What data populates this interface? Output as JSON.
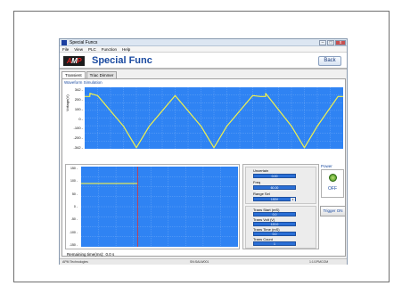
{
  "window": {
    "title": "Special Funcs"
  },
  "menu": [
    "File",
    "View",
    "PLC",
    "Function",
    "Help"
  ],
  "header": {
    "logo_prefix": "A",
    "logo_suffix": "P",
    "page_title": "Special Func",
    "back_label": "Back"
  },
  "tabs": [
    {
      "label": "Transient",
      "active": true
    },
    {
      "label": "Triac Dimmer",
      "active": false
    }
  ],
  "waveform": {
    "section_label": "Waveform Simulation",
    "y_label": "Voltage(V)",
    "y_ticks": [
      "342",
      "200",
      "100",
      "0",
      "-100",
      "-200",
      "-342"
    ],
    "colors": {
      "background": "#2f83f3",
      "trace": "#f2f24a",
      "grid": "#7fb4f7"
    }
  },
  "chart_data": {
    "type": "line",
    "xlabel": "",
    "ylabel": "Voltage(V)",
    "ylim": [
      -342,
      342
    ],
    "series": [
      {
        "values": [
          [
            0,
            240
          ],
          [
            0.2,
            240
          ],
          [
            0.2,
            275
          ],
          [
            0.5,
            250
          ],
          [
            1.5,
            -90
          ],
          [
            2.0,
            -330
          ],
          [
            2.5,
            -90
          ],
          [
            3.5,
            250
          ],
          [
            4.5,
            -90
          ],
          [
            5.0,
            -330
          ],
          [
            5.5,
            -90
          ],
          [
            6.5,
            250
          ],
          [
            6.8,
            240
          ],
          [
            7.0,
            240
          ],
          [
            7.0,
            275
          ],
          [
            8.0,
            -90
          ],
          [
            8.5,
            -330
          ],
          [
            9.0,
            -90
          ],
          [
            9.8,
            240
          ],
          [
            10.0,
            240
          ]
        ]
      }
    ]
  },
  "lower_chart": {
    "y_ticks": [
      "150",
      "100",
      "50",
      "0",
      "-50",
      "-100",
      "-150"
    ],
    "y_label": "(V)",
    "colors": {
      "background": "#2f83f3",
      "trace": "#f2f24a",
      "marker": "#e03030"
    }
  },
  "settings": {
    "top": [
      {
        "label": "Uncertain",
        "value": "0.00"
      },
      {
        "label": "Freq",
        "value": "60.00"
      },
      {
        "label": "Range Sel",
        "value": "150V"
      }
    ],
    "bottom": [
      {
        "label": "Trans Start (mS)",
        "value": "0.0"
      },
      {
        "label": "Trans Volt (V)",
        "value": "120.0"
      },
      {
        "label": "Trans Time (mS)",
        "value": "0.0"
      },
      {
        "label": "Trans Count",
        "value": "1"
      }
    ]
  },
  "power": {
    "label": "Power",
    "state": "OFF"
  },
  "trigger": {
    "label": "Trigger ON"
  },
  "remaining": {
    "label": "Remaining time(ms):",
    "value": "0.0 s"
  },
  "statusbar": {
    "left": "APM Technologies",
    "mid": "SN:SALW001",
    "right": "1:1/1PMCOM"
  }
}
